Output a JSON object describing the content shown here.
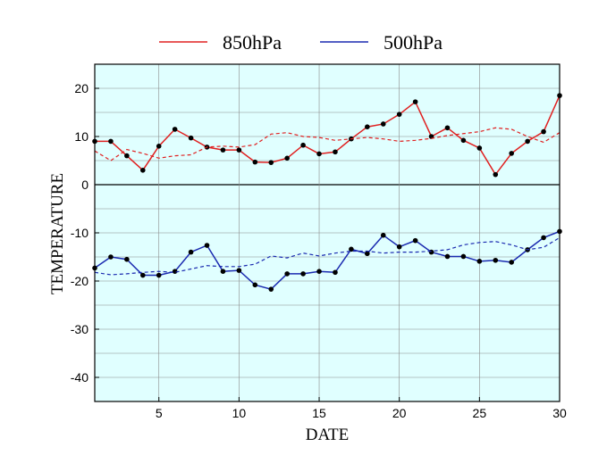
{
  "chart_data": {
    "type": "line",
    "title": "",
    "xlabel": "DATE",
    "ylabel": "TEMPERATURE",
    "xlim": [
      1,
      30
    ],
    "ylim": [
      -45,
      25
    ],
    "x_ticks": [
      5,
      10,
      15,
      20,
      25,
      30
    ],
    "y_ticks": [
      20,
      10,
      0,
      -10,
      -20,
      -30,
      -40
    ],
    "grid": true,
    "legend_position": "top-center",
    "plot_background": "#e0ffff",
    "x": [
      1,
      2,
      3,
      4,
      5,
      6,
      7,
      8,
      9,
      10,
      11,
      12,
      13,
      14,
      15,
      16,
      17,
      18,
      19,
      20,
      21,
      22,
      23,
      24,
      25,
      26,
      27,
      28,
      29,
      30
    ],
    "series": [
      {
        "name": "850hPa",
        "color": "#e02020",
        "style": "solid-with-markers",
        "values": [
          9,
          9,
          6,
          3,
          8,
          11.5,
          9.7,
          7.8,
          7.2,
          7.2,
          4.7,
          4.6,
          5.5,
          8.2,
          6.4,
          6.8,
          9.5,
          12,
          12.6,
          14.6,
          17.2,
          10,
          11.8,
          9.2,
          7.6,
          2.1,
          6.5,
          9,
          11,
          18.5
        ]
      },
      {
        "name": "",
        "color": "#e02020",
        "style": "dashed",
        "values": [
          7,
          5,
          7.3,
          6.5,
          5.5,
          6,
          6.2,
          7.8,
          8,
          7.8,
          8.3,
          10.5,
          10.8,
          10,
          9.8,
          9.2,
          9.5,
          9.8,
          9.5,
          9,
          9.2,
          9.6,
          10.2,
          10.6,
          11,
          11.8,
          11.5,
          10,
          8.8,
          10.8
        ]
      },
      {
        "name": "500hPa",
        "color": "#1a2ab0",
        "style": "solid-with-markers",
        "values": [
          -17.3,
          -15,
          -15.5,
          -18.8,
          -18.8,
          -18,
          -14,
          -12.6,
          -18,
          -17.8,
          -20.8,
          -21.7,
          -18.5,
          -18.5,
          -18,
          -18.2,
          -13.4,
          -14.3,
          -10.5,
          -12.9,
          -11.6,
          -14,
          -14.9,
          -14.9,
          -15.9,
          -15.7,
          -16.1,
          -13.5,
          -11,
          -9.7
        ]
      },
      {
        "name": "",
        "color": "#1a2ab0",
        "style": "dashed",
        "values": [
          -18.2,
          -18.7,
          -18.5,
          -18.2,
          -18,
          -18.2,
          -17.5,
          -16.8,
          -17,
          -17,
          -16.5,
          -14.8,
          -15.2,
          -14.2,
          -14.8,
          -14.2,
          -13.8,
          -13.8,
          -14.2,
          -14,
          -14,
          -13.8,
          -13.5,
          -12.5,
          -12,
          -11.8,
          -12.5,
          -13.5,
          -13,
          -11
        ]
      }
    ]
  }
}
